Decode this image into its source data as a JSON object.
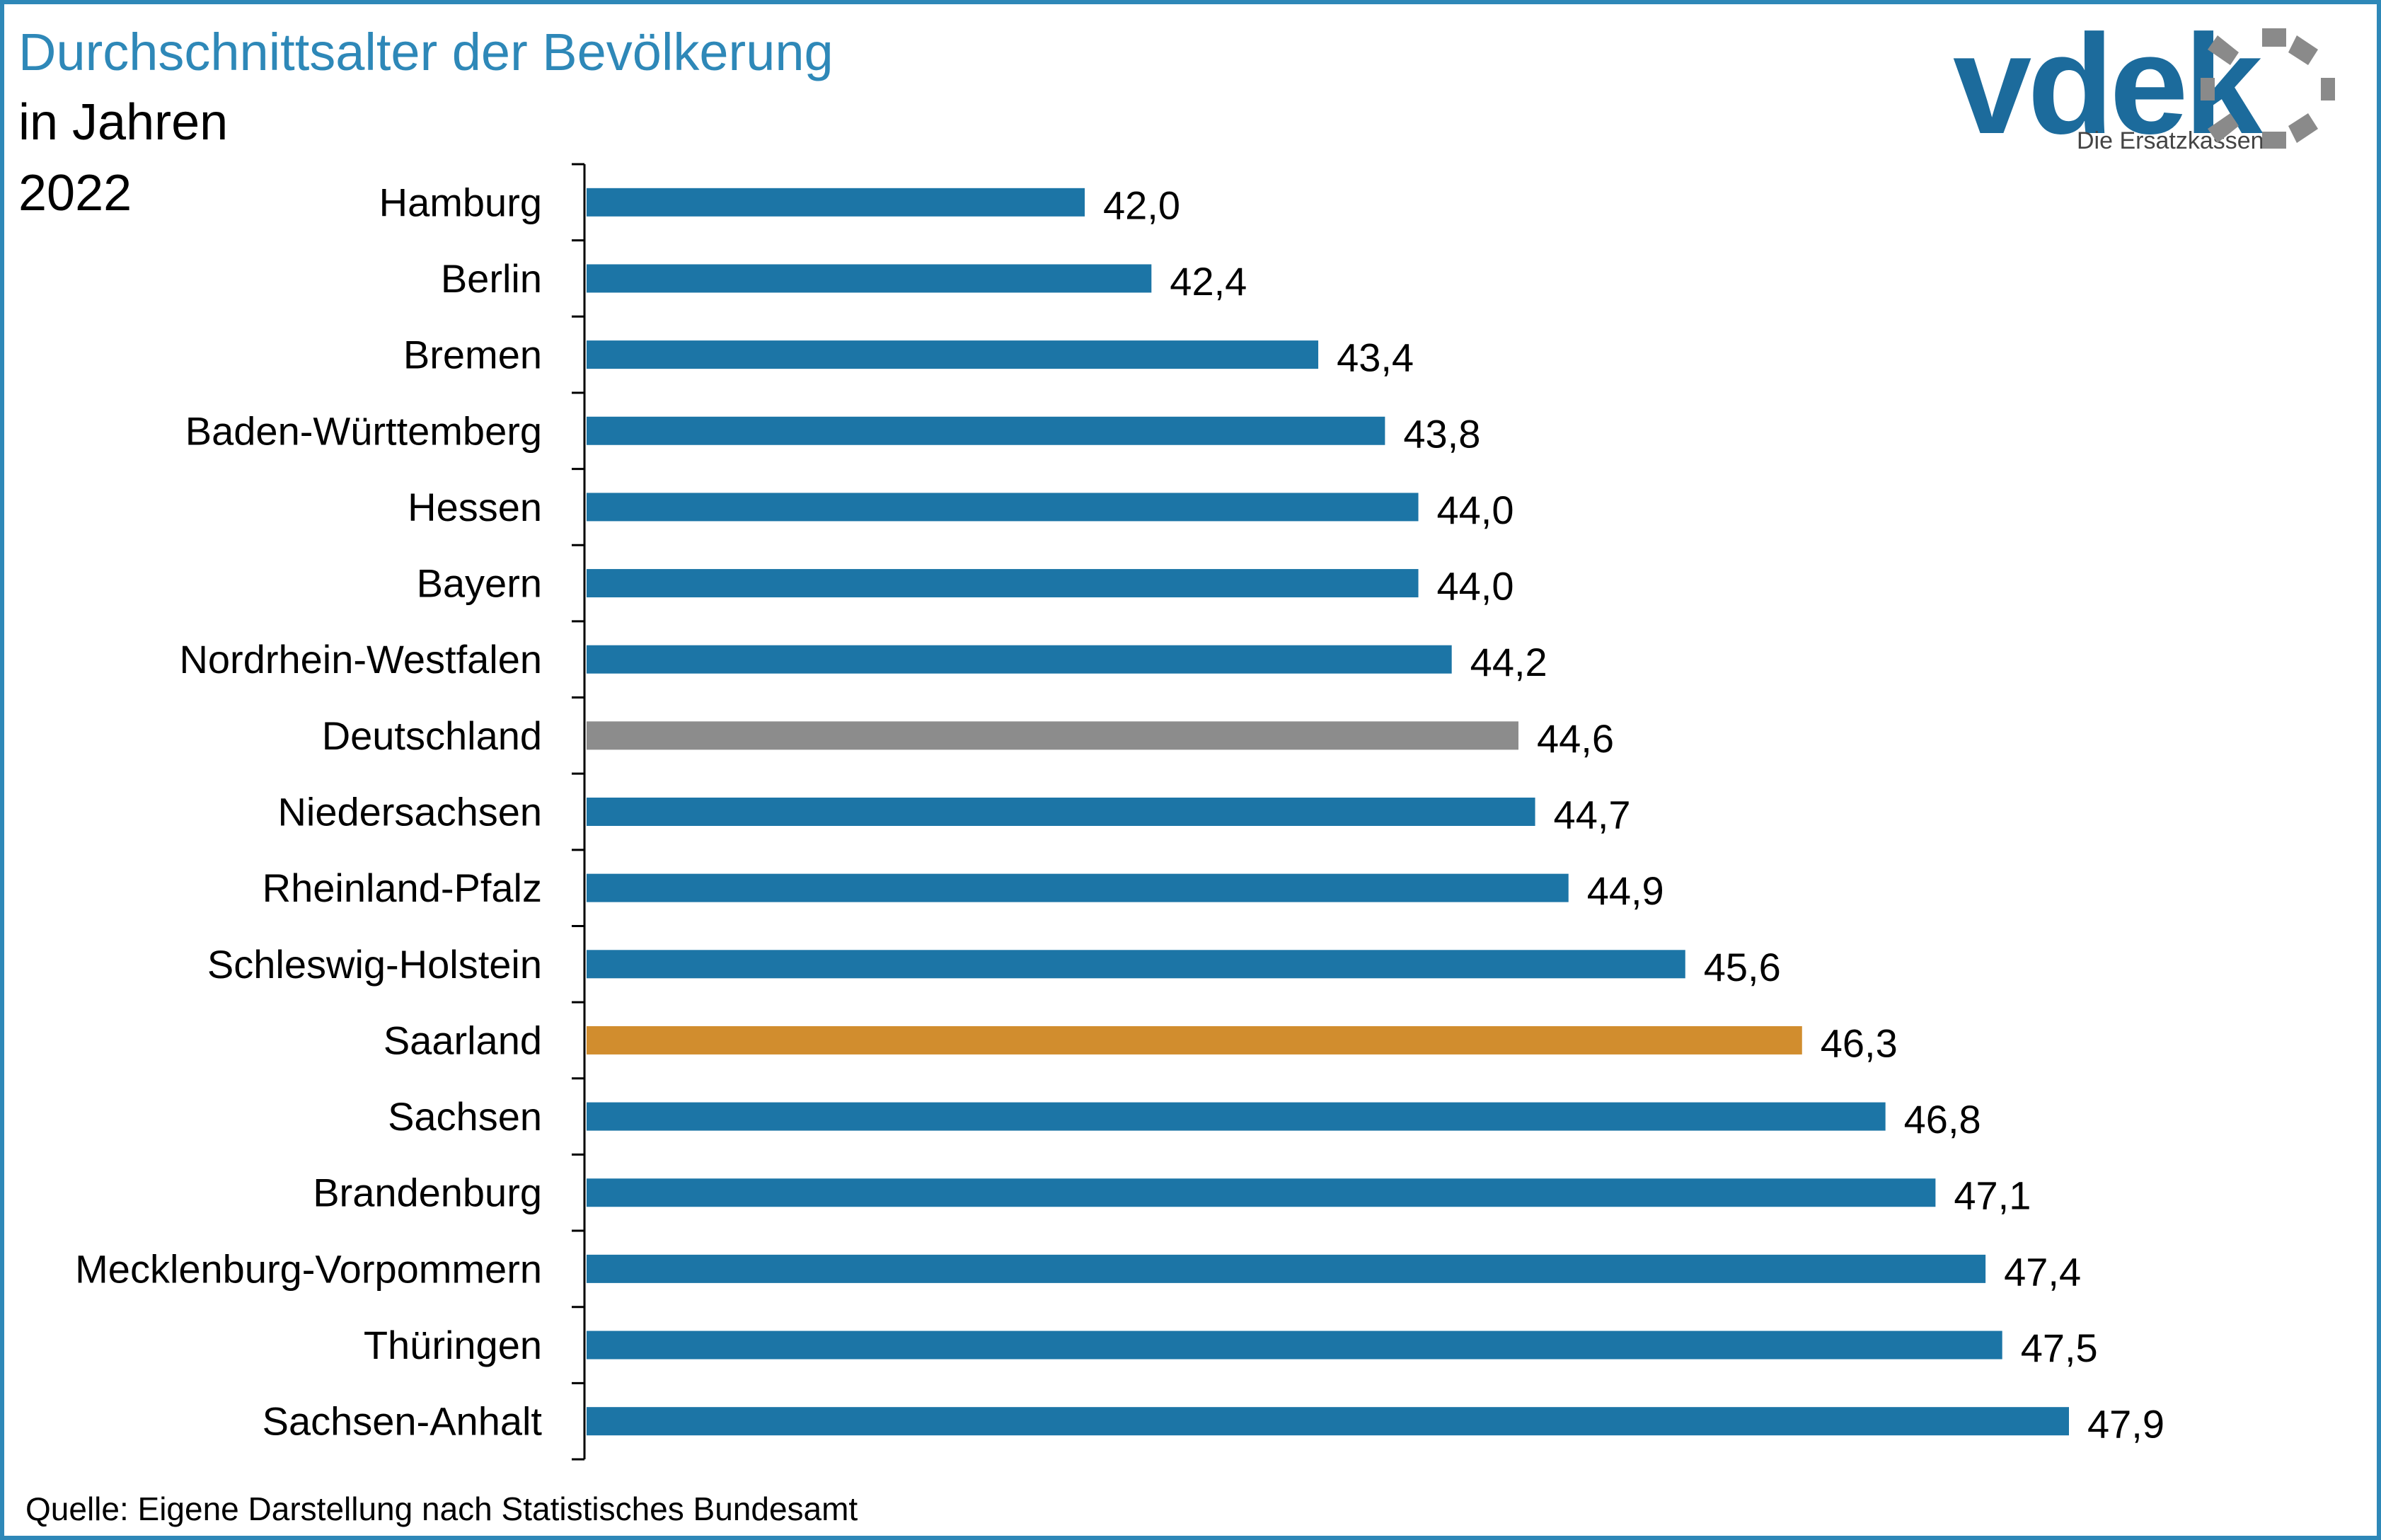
{
  "header": {
    "title": "Durchschnittsalter der Bevölkerung",
    "subtitle_line1": "in Jahren",
    "subtitle_line2": "2022"
  },
  "footer": {
    "source": "Quelle: Eigene Darstellung nach Statistisches Bundesamt"
  },
  "logo": {
    "text": "vdek",
    "tagline": "Die Ersatzkassen"
  },
  "colors": {
    "default_bar": "#1c75a6",
    "national_bar": "#8c8c8c",
    "highlight_bar": "#d18d2e",
    "title": "#2e88b8",
    "frame": "#2e88b8"
  },
  "chart_data": {
    "type": "bar",
    "orientation": "horizontal",
    "categories": [
      "Hamburg",
      "Berlin",
      "Bremen",
      "Baden-Württemberg",
      "Hessen",
      "Bayern",
      "Nordrhein-Westfalen",
      "Deutschland",
      "Niedersachsen",
      "Rheinland-Pfalz",
      "Schleswig-Holstein",
      "Saarland",
      "Sachsen",
      "Brandenburg",
      "Mecklenburg-Vorpommern",
      "Thüringen",
      "Sachsen-Anhalt"
    ],
    "values": [
      42.0,
      42.4,
      43.4,
      43.8,
      44.0,
      44.0,
      44.2,
      44.6,
      44.7,
      44.9,
      45.6,
      46.3,
      46.8,
      47.1,
      47.4,
      47.5,
      47.9
    ],
    "value_labels": [
      "42,0",
      "42,4",
      "43,4",
      "43,8",
      "44,0",
      "44,0",
      "44,2",
      "44,6",
      "44,7",
      "44,9",
      "45,6",
      "46,3",
      "46,8",
      "47,1",
      "47,4",
      "47,5",
      "47,9"
    ],
    "bar_colors": [
      "default",
      "default",
      "default",
      "default",
      "default",
      "default",
      "default",
      "national",
      "default",
      "default",
      "default",
      "highlight",
      "default",
      "default",
      "default",
      "default",
      "default"
    ],
    "xlim": [
      36,
      50
    ],
    "grid": false,
    "legend": "none"
  }
}
